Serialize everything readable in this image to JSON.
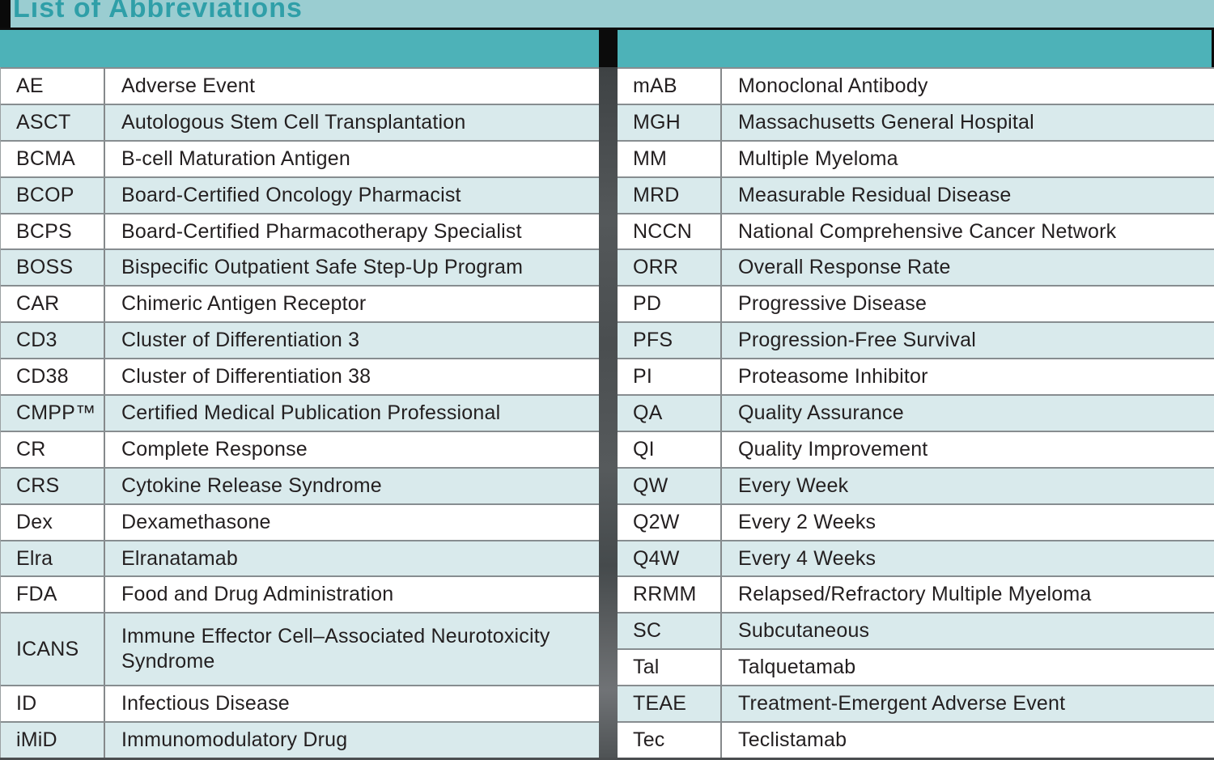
{
  "title": "List of Abbreviations",
  "colors": {
    "title_band": "#9ACDD1",
    "title_text": "#2F9FA8",
    "header_band": "#4DB2B8",
    "row_base": "#FFFFFF",
    "row_alt": "#D9EAEC",
    "divider_dark": "#4A4E50",
    "text": "#231F20"
  },
  "left_table": {
    "rows": [
      {
        "abbr": "AE",
        "term": "Adverse Event"
      },
      {
        "abbr": "ASCT",
        "term": "Autologous Stem Cell Transplantation"
      },
      {
        "abbr": "BCMA",
        "term": "B-cell Maturation Antigen"
      },
      {
        "abbr": "BCOP",
        "term": "Board-Certified Oncology Pharmacist"
      },
      {
        "abbr": "BCPS",
        "term": "Board-Certified Pharmacotherapy Specialist"
      },
      {
        "abbr": "BOSS",
        "term": "Bispecific Outpatient Safe Step-Up Program"
      },
      {
        "abbr": "CAR",
        "term": "Chimeric Antigen Receptor"
      },
      {
        "abbr": "CD3",
        "term": "Cluster of Differentiation 3"
      },
      {
        "abbr": "CD38",
        "term": "Cluster of Differentiation 38"
      },
      {
        "abbr": "CMPP™",
        "term": "Certified Medical Publication Professional"
      },
      {
        "abbr": "CR",
        "term": "Complete Response"
      },
      {
        "abbr": "CRS",
        "term": "Cytokine Release Syndrome"
      },
      {
        "abbr": "Dex",
        "term": "Dexamethasone"
      },
      {
        "abbr": "Elra",
        "term": "Elranatamab"
      },
      {
        "abbr": "FDA",
        "term": "Food and Drug Administration"
      },
      {
        "abbr": "ICANS",
        "term": "Immune Effector Cell–Associated Neurotoxicity Syndrome"
      },
      {
        "abbr": "ID",
        "term": "Infectious Disease"
      },
      {
        "abbr": "iMiD",
        "term": "Immunomodulatory Drug"
      }
    ]
  },
  "right_table": {
    "rows": [
      {
        "abbr": "mAB",
        "term": "Monoclonal Antibody"
      },
      {
        "abbr": "MGH",
        "term": "Massachusetts General Hospital"
      },
      {
        "abbr": "MM",
        "term": "Multiple Myeloma"
      },
      {
        "abbr": "MRD",
        "term": "Measurable Residual Disease"
      },
      {
        "abbr": "NCCN",
        "term": "National Comprehensive Cancer Network"
      },
      {
        "abbr": "ORR",
        "term": "Overall Response Rate"
      },
      {
        "abbr": "PD",
        "term": "Progressive Disease"
      },
      {
        "abbr": "PFS",
        "term": "Progression-Free Survival"
      },
      {
        "abbr": "PI",
        "term": "Proteasome Inhibitor"
      },
      {
        "abbr": "QA",
        "term": "Quality Assurance"
      },
      {
        "abbr": "QI",
        "term": "Quality Improvement"
      },
      {
        "abbr": "QW",
        "term": "Every Week"
      },
      {
        "abbr": "Q2W",
        "term": "Every 2 Weeks"
      },
      {
        "abbr": "Q4W",
        "term": "Every 4 Weeks"
      },
      {
        "abbr": "RRMM",
        "term": "Relapsed/Refractory Multiple Myeloma"
      },
      {
        "abbr": "SC",
        "term": "Subcutaneous"
      },
      {
        "abbr": "Tal",
        "term": "Talquetamab"
      },
      {
        "abbr": "TEAE",
        "term": "Treatment-Emergent Adverse Event"
      },
      {
        "abbr": "Tec",
        "term": "Teclistamab"
      }
    ]
  }
}
